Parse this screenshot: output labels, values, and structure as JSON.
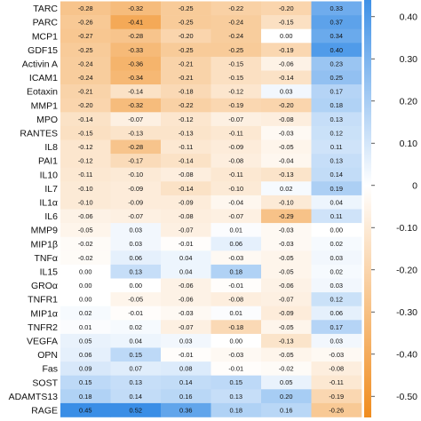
{
  "chart_data": {
    "type": "heatmap",
    "title": "",
    "xlabel": "",
    "ylabel": "",
    "rows": [
      "TARC",
      "PARC",
      "MCP1",
      "GDF15",
      "Activin A",
      "ICAM1",
      "Eotaxin",
      "MMP1",
      "MPO",
      "RANTES",
      "IL8",
      "PAI1",
      "IL10",
      "IL7",
      "IL1α",
      "IL6",
      "MMP9",
      "MIP1β",
      "TNFα",
      "IL15",
      "GROα",
      "TNFR1",
      "MIP1α",
      "TNFR2",
      "VEGFA",
      "OPN",
      "Fas",
      "SOST",
      "ADAMTS13",
      "RAGE"
    ],
    "values": [
      [
        -0.28,
        -0.32,
        -0.25,
        -0.22,
        -0.2,
        0.33
      ],
      [
        -0.26,
        -0.41,
        -0.25,
        -0.24,
        -0.15,
        0.37
      ],
      [
        -0.27,
        -0.28,
        -0.2,
        -0.24,
        0.0,
        0.34
      ],
      [
        -0.25,
        -0.33,
        -0.25,
        -0.25,
        -0.19,
        0.4
      ],
      [
        -0.24,
        -0.36,
        -0.21,
        -0.15,
        -0.06,
        0.23
      ],
      [
        -0.24,
        -0.34,
        -0.21,
        -0.15,
        -0.14,
        0.25
      ],
      [
        -0.21,
        -0.14,
        -0.18,
        -0.12,
        0.03,
        0.17
      ],
      [
        -0.2,
        -0.32,
        -0.22,
        -0.19,
        -0.2,
        0.18
      ],
      [
        -0.14,
        -0.07,
        -0.12,
        -0.07,
        -0.08,
        0.13
      ],
      [
        -0.15,
        -0.13,
        -0.13,
        -0.11,
        -0.03,
        0.12
      ],
      [
        -0.12,
        -0.28,
        -0.11,
        -0.09,
        -0.05,
        0.11
      ],
      [
        -0.12,
        -0.17,
        -0.14,
        -0.08,
        -0.04,
        0.13
      ],
      [
        -0.11,
        -0.1,
        -0.08,
        -0.11,
        -0.13,
        0.14
      ],
      [
        -0.1,
        -0.09,
        -0.14,
        -0.1,
        0.02,
        0.19
      ],
      [
        -0.1,
        -0.09,
        -0.09,
        -0.04,
        -0.1,
        0.04
      ],
      [
        -0.06,
        -0.07,
        -0.08,
        -0.07,
        -0.29,
        0.11
      ],
      [
        -0.05,
        0.03,
        -0.07,
        0.01,
        -0.03,
        0.0
      ],
      [
        -0.02,
        0.03,
        -0.01,
        0.06,
        -0.03,
        0.02
      ],
      [
        -0.02,
        0.06,
        0.04,
        -0.03,
        -0.05,
        0.03
      ],
      [
        0.0,
        0.13,
        0.04,
        0.18,
        -0.05,
        0.02
      ],
      [
        0.0,
        0.0,
        -0.06,
        -0.01,
        -0.06,
        0.03
      ],
      [
        0.0,
        -0.05,
        -0.06,
        -0.08,
        -0.07,
        0.12
      ],
      [
        0.02,
        -0.01,
        -0.03,
        0.01,
        -0.09,
        0.06
      ],
      [
        0.01,
        0.02,
        -0.07,
        -0.18,
        -0.05,
        0.17
      ],
      [
        0.05,
        0.04,
        0.03,
        0.0,
        -0.13,
        0.03
      ],
      [
        0.06,
        0.15,
        -0.01,
        -0.03,
        -0.05,
        -0.03
      ],
      [
        0.09,
        0.07,
        0.08,
        -0.01,
        -0.02,
        -0.08
      ],
      [
        0.15,
        0.13,
        0.14,
        0.15,
        0.05,
        -0.11
      ],
      [
        0.18,
        0.14,
        0.16,
        0.13,
        0.2,
        -0.19
      ],
      [
        0.45,
        0.52,
        0.36,
        0.18,
        0.16,
        -0.26
      ]
    ],
    "colorscale": {
      "min": -0.55,
      "max": 0.45,
      "negative_color": "#f08c1e",
      "zero_color": "#ffffff",
      "positive_color": "#3a8ee6"
    },
    "colorbar_ticks": [
      "0.40",
      "0.30",
      "0.20",
      "0.10",
      "0",
      "-0.10",
      "-0.20",
      "-0.30",
      "-0.40",
      "-0.50"
    ],
    "colorbar_tick_values": [
      0.4,
      0.3,
      0.2,
      0.1,
      0,
      -0.1,
      -0.2,
      -0.3,
      -0.4,
      -0.5
    ]
  }
}
